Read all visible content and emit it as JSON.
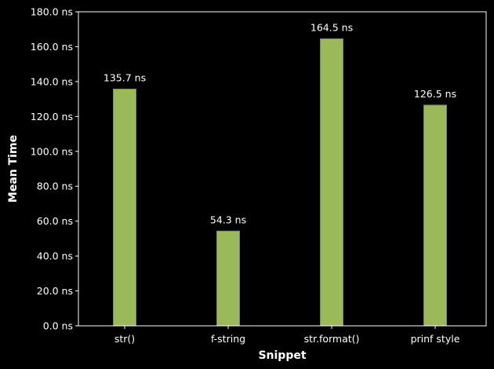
{
  "chart_data": {
    "type": "bar",
    "categories": [
      "str()",
      "f-string",
      "str.format()",
      "prinf style"
    ],
    "values": [
      135.7,
      54.3,
      164.5,
      126.5
    ],
    "value_labels": [
      "135.7 ns",
      "54.3 ns",
      "164.5 ns",
      "126.5 ns"
    ],
    "xlabel": "Snippet",
    "ylabel": "Mean Time",
    "ylim": [
      0,
      180
    ],
    "yticks": [
      0,
      20,
      40,
      60,
      80,
      100,
      120,
      140,
      160,
      180
    ],
    "ytick_labels": [
      "0.0 ns",
      "20.0 ns",
      "40.0 ns",
      "60.0 ns",
      "80.0 ns",
      "100.0 ns",
      "120.0 ns",
      "140.0 ns",
      "160.0 ns",
      "180.0 ns"
    ],
    "grid": false,
    "legend": "none",
    "colors": {
      "background": "#000000",
      "bar_fill": "#9aba59",
      "bar_edge": "#7f7f7f",
      "axis": "#ffffff",
      "text": "#ffffff"
    }
  }
}
